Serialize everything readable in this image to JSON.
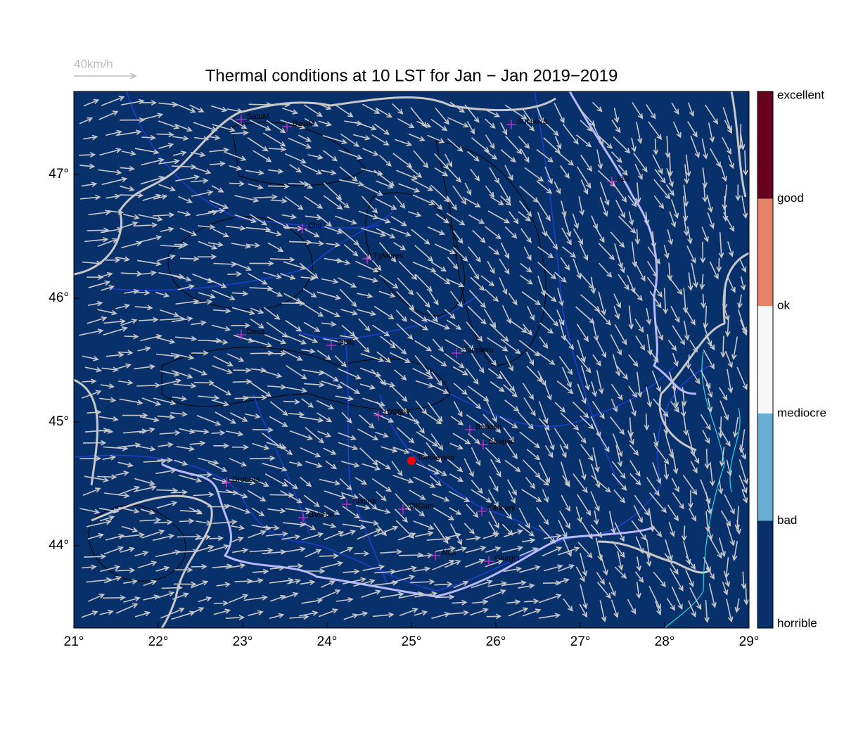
{
  "title": "Thermal conditions at 10 LST for Jan − Jan  2019−2019",
  "arrow_key": "40km/h",
  "lon_ticks": [
    {
      "value": 21,
      "label": "21°"
    },
    {
      "value": 22,
      "label": "22°"
    },
    {
      "value": 23,
      "label": "23°"
    },
    {
      "value": 24,
      "label": "24°"
    },
    {
      "value": 25,
      "label": "25°"
    },
    {
      "value": 26,
      "label": "26°"
    },
    {
      "value": 27,
      "label": "27°"
    },
    {
      "value": 28,
      "label": "28°"
    },
    {
      "value": 29,
      "label": "29°"
    }
  ],
  "lat_ticks": [
    {
      "value": 44,
      "label": "44°"
    },
    {
      "value": 45,
      "label": "45°"
    },
    {
      "value": 46,
      "label": "46°"
    },
    {
      "value": 47,
      "label": "47°"
    }
  ],
  "cities": [
    "SatuM",
    "BaiaM",
    "Suceava",
    "Iasi",
    "Cluj",
    "TgMures",
    "Deva",
    "Sibiu",
    "Sanpetru",
    "CArges",
    "Banesti",
    "Strejnic",
    "Topoleveni",
    "Drobeta",
    "Slatina",
    "SilGum",
    "BVerde",
    "Clinceni",
    "Alex",
    "Giurgiu"
  ],
  "colorbar": {
    "labels": [
      "excellent",
      "good",
      "ok",
      "mediocre",
      "bad",
      "horrible"
    ],
    "colors": [
      "#67001f",
      "#e58267",
      "#f7f7f7",
      "#6aaed6",
      "#08306b"
    ]
  }
}
